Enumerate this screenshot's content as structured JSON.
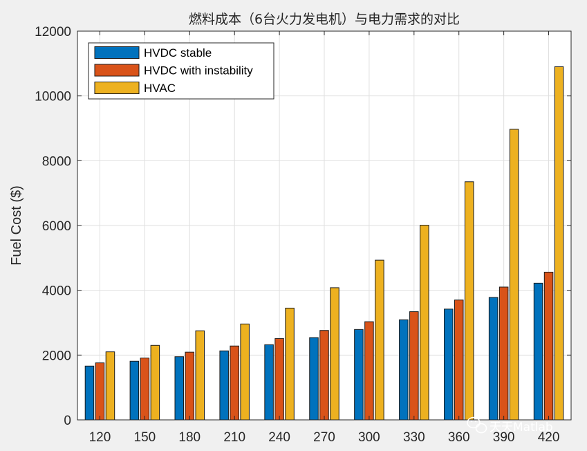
{
  "chart_data": {
    "type": "bar",
    "title": "燃料成本（6台火力发电机）与电力需求的对比",
    "xlabel": "",
    "ylabel": "Fuel Cost ($)",
    "categories": [
      "120",
      "150",
      "180",
      "210",
      "240",
      "270",
      "300",
      "330",
      "360",
      "390",
      "420"
    ],
    "series": [
      {
        "name": "HVDC stable",
        "color": "#0072BD",
        "values": [
          1660,
          1810,
          1950,
          2130,
          2320,
          2540,
          2790,
          3090,
          3420,
          3780,
          4220
        ]
      },
      {
        "name": "HVDC with instability",
        "color": "#D95319",
        "values": [
          1760,
          1910,
          2090,
          2280,
          2510,
          2760,
          3030,
          3340,
          3700,
          4100,
          4560
        ]
      },
      {
        "name": "HVAC",
        "color": "#EDB120",
        "values": [
          2100,
          2300,
          2750,
          2960,
          3450,
          4080,
          4930,
          6010,
          7350,
          8970,
          10900
        ]
      }
    ],
    "ylim": [
      0,
      12000
    ],
    "yticks": [
      "0",
      "2000",
      "4000",
      "6000",
      "8000",
      "10000",
      "12000"
    ],
    "grid": true,
    "legend_position": "top-left"
  },
  "watermark": {
    "text": "天天Matlab",
    "icon": "wechat-icon"
  }
}
